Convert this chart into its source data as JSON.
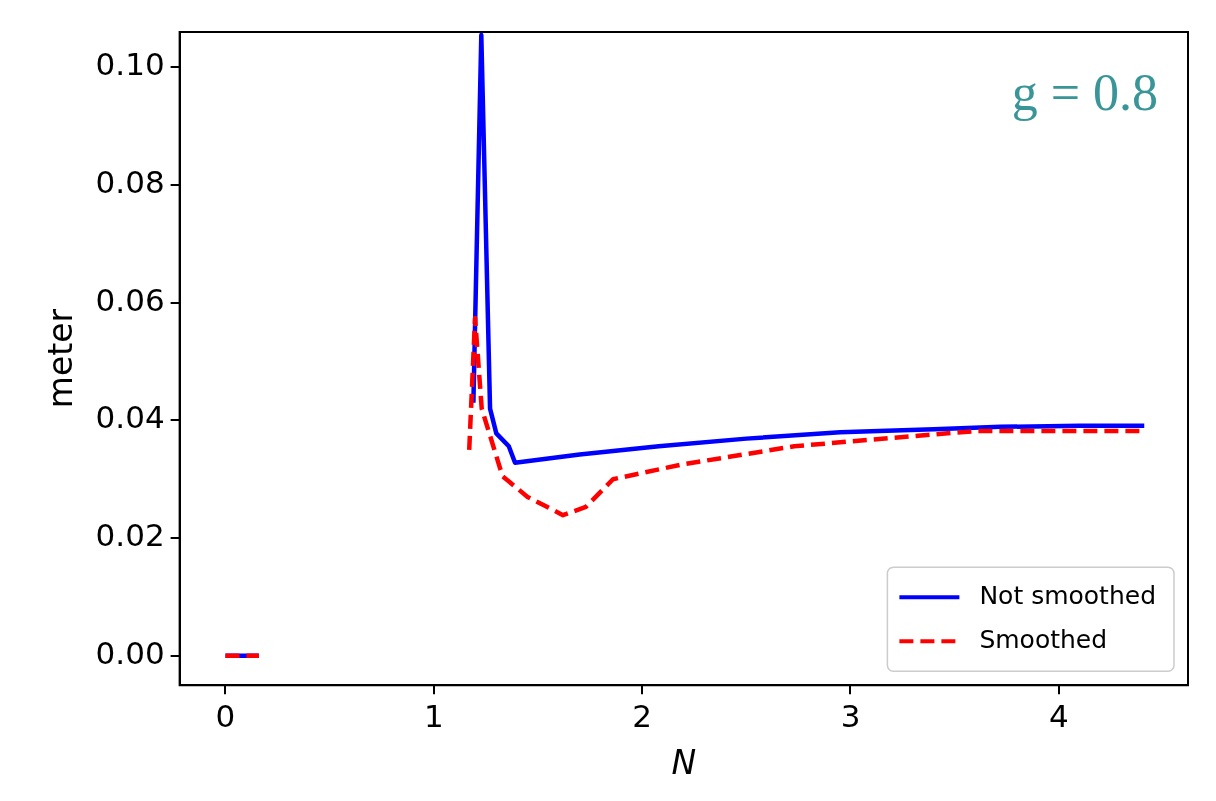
{
  "chart_data": {
    "type": "line",
    "xlabel": "N",
    "ylabel": "meter",
    "annotations": [
      "g = 0.8"
    ],
    "xlim": [
      -0.22,
      4.62
    ],
    "ylim": [
      -0.005,
      0.106
    ],
    "xticks": [
      0,
      1,
      2,
      3,
      4
    ],
    "yticks": [
      {
        "value": 0,
        "label": "0.00"
      },
      {
        "value": 0.02,
        "label": "0.02"
      },
      {
        "value": 0.04,
        "label": "0.04"
      },
      {
        "value": 0.06,
        "label": "0.06"
      },
      {
        "value": 0.08,
        "label": "0.08"
      },
      {
        "value": 0.1,
        "label": "0.10"
      }
    ],
    "grid": false,
    "legend": "bottom right",
    "marker": "none",
    "series": [
      {
        "name": "Not smoothed",
        "color": "#0000ff",
        "line_style": "solid",
        "x": [
          0,
          0.16,
          0.6,
          1.19,
          1.228,
          1.27,
          1.3,
          1.36,
          1.39,
          1.7,
          2.08,
          2.5,
          2.95,
          3.4,
          3.72,
          4.1,
          4.41
        ],
        "values": [
          0,
          0,
          null,
          0.043,
          0.1055,
          0.042,
          0.0378,
          0.0356,
          0.0328,
          0.0342,
          0.0356,
          0.0369,
          0.038,
          0.0385,
          0.0389,
          0.0391,
          0.0391
        ]
      },
      {
        "name": "Smoothed",
        "color": "#ff0000",
        "line_style": "dashed",
        "x": [
          0,
          0.16,
          0.6,
          1.17,
          1.198,
          1.23,
          1.33,
          1.45,
          1.62,
          1.73,
          1.86,
          2.19,
          2.73,
          3.39,
          3.61,
          4.0,
          4.4
        ],
        "values": [
          0,
          0,
          null,
          0.035,
          0.0574,
          0.042,
          0.0305,
          0.027,
          0.0239,
          0.0253,
          0.03,
          0.0325,
          0.0356,
          0.0376,
          0.0382,
          0.0382,
          0.0382
        ]
      }
    ]
  }
}
